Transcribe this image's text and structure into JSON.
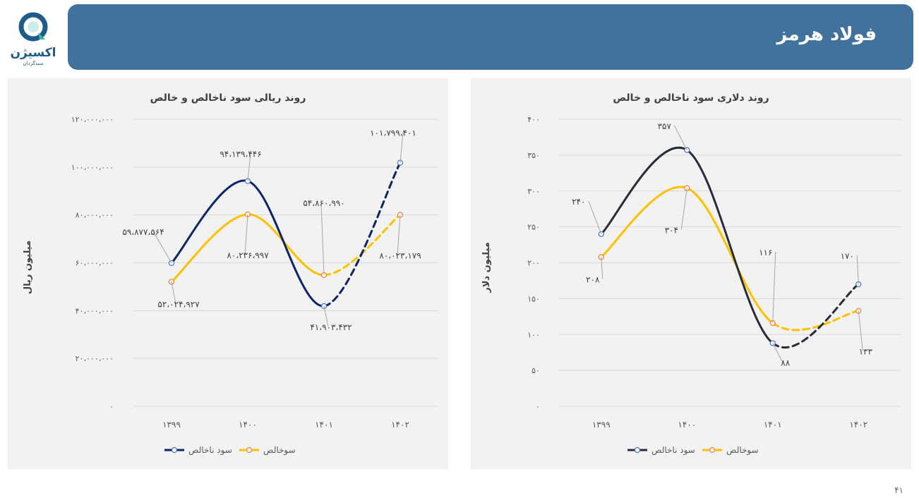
{
  "header": {
    "title": "فولاد هرمز",
    "background": "#41729d"
  },
  "logo": {
    "brand": "اکسیژن",
    "sub": "سبدگردان"
  },
  "page_number": "۴۱",
  "chart_data": [
    {
      "type": "line",
      "title": "روند ریالی سود ناخالص و خالص",
      "ylabel": "میلیون ریال",
      "xlabel": "",
      "categories": [
        "۱۳۹۹",
        "۱۴۰۰",
        "۱۴۰۱",
        "۱۴۰۲"
      ],
      "ylim": [
        0,
        120000000
      ],
      "yticks": [
        0,
        20000000,
        40000000,
        60000000,
        80000000,
        100000000,
        120000000
      ],
      "ytick_labels": [
        "۰",
        "۲۰،۰۰۰،۰۰۰",
        "۴۰،۰۰۰،۰۰۰",
        "۶۰،۰۰۰،۰۰۰",
        "۸۰،۰۰۰،۰۰۰",
        "۱۰۰،۰۰۰،۰۰۰",
        "۱۲۰،۰۰۰،۰۰۰"
      ],
      "grid": true,
      "legend": "bottom",
      "series": [
        {
          "name": "سود ناخالص",
          "color": "#0d2566",
          "values": [
            59877564,
            94139446,
            41903432,
            101799401
          ],
          "labels": [
            "۵۹،۸۷۷،۵۶۴",
            "۹۴،۱۳۹،۴۴۶",
            "۴۱،۹۰۳،۴۳۲",
            "۱۰۱،۷۹۹،۴۰۱"
          ],
          "dashed_last_segment": true
        },
        {
          "name": "سوخالص",
          "color": "#ffc000",
          "values": [
            52024927,
            80236997,
            54860990,
            80023179
          ],
          "labels": [
            "۵۲،۰۲۴،۹۲۷",
            "۸۰،۲۳۶،۹۹۷",
            "۵۴،۸۶۰،۹۹۰",
            "۸۰،۰۲۳،۱۷۹"
          ],
          "dashed_last_segment": true
        }
      ]
    },
    {
      "type": "line",
      "title": "روند دلاری سود ناخالص و خالص",
      "ylabel": "میلیون دلار",
      "xlabel": "",
      "categories": [
        "۱۳۹۹",
        "۱۴۰۰",
        "۱۴۰۱",
        "۱۴۰۲"
      ],
      "ylim": [
        0,
        400
      ],
      "yticks": [
        0,
        50,
        100,
        150,
        200,
        250,
        300,
        350,
        400
      ],
      "ytick_labels": [
        "۰",
        "۵۰",
        "۱۰۰",
        "۱۵۰",
        "۲۰۰",
        "۲۵۰",
        "۳۰۰",
        "۳۵۰",
        "۴۰۰"
      ],
      "grid": true,
      "legend": "bottom",
      "series": [
        {
          "name": "سود ناخالص",
          "color": "#262c38",
          "values": [
            240,
            357,
            88,
            170
          ],
          "labels": [
            "۲۴۰",
            "۳۵۷",
            "۸۸",
            "۱۷۰"
          ],
          "dashed_last_segment": true
        },
        {
          "name": "سوخالص",
          "color": "#ffc000",
          "values": [
            208,
            304,
            116,
            133
          ],
          "labels": [
            "۲۰۸",
            "۳۰۴",
            "۱۱۶",
            "۱۳۳"
          ],
          "dashed_last_segment": true
        }
      ]
    }
  ]
}
